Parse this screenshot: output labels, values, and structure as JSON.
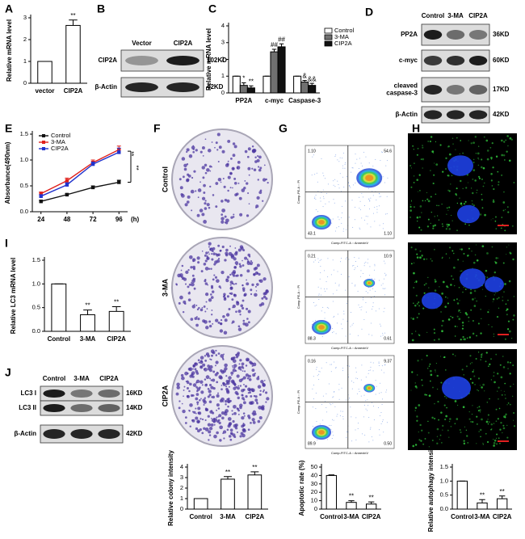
{
  "chart_data": [
    {
      "type": "bar",
      "panel": "A",
      "ylabel": "Relative mRNA level",
      "categories": [
        "vector",
        "CIP2A"
      ],
      "values": [
        1,
        2.65
      ],
      "errors": [
        0,
        0.25
      ],
      "annotations": [
        null,
        "**"
      ],
      "color": "#ffffff",
      "ylim": [
        0,
        3
      ],
      "yticks": [
        0,
        1,
        2,
        3
      ]
    },
    {
      "type": "bar",
      "panel": "C",
      "ylabel": "Relative mRNA level",
      "categories": [
        "PP2A",
        "c-myc",
        "Caspase-3"
      ],
      "series": [
        {
          "name": "Control",
          "color": "#ffffff",
          "values": [
            1,
            1,
            1
          ],
          "errors": [
            0,
            0,
            0
          ],
          "annotations": [
            null,
            null,
            null
          ]
        },
        {
          "name": "3-MA",
          "color": "#707070",
          "values": [
            0.45,
            2.45,
            0.65
          ],
          "errors": [
            0.15,
            0.15,
            0.1
          ],
          "annotations": [
            "*",
            "##",
            "&"
          ]
        },
        {
          "name": "CIP2A",
          "color": "#111111",
          "values": [
            0.3,
            2.75,
            0.45
          ],
          "errors": [
            0.12,
            0.18,
            0.12
          ],
          "annotations": [
            "**",
            "##",
            "&&"
          ]
        }
      ],
      "ylim": [
        0,
        4
      ],
      "yticks": [
        0,
        1,
        2,
        3,
        4
      ]
    },
    {
      "type": "line",
      "panel": "E",
      "ylabel": "Absorbance(490nm)",
      "xlabel": "(h)",
      "x": [
        24,
        48,
        72,
        96
      ],
      "xlim": [
        16,
        104
      ],
      "xticks": [
        24,
        48,
        72,
        96
      ],
      "series": [
        {
          "name": "Control",
          "color": "#111111",
          "values": [
            0.2,
            0.33,
            0.47,
            0.57
          ],
          "errors": [
            0.02,
            0.02,
            0.03,
            0.04
          ]
        },
        {
          "name": "3-MA",
          "color": "#e0201b",
          "values": [
            0.35,
            0.6,
            0.95,
            1.2
          ],
          "errors": [
            0.03,
            0.05,
            0.05,
            0.07
          ]
        },
        {
          "name": "CIP2A",
          "color": "#2233cc",
          "values": [
            0.3,
            0.52,
            0.92,
            1.15
          ],
          "errors": [
            0.03,
            0.04,
            0.04,
            0.08
          ]
        }
      ],
      "annotations": [
        "**",
        "**"
      ],
      "ylim": [
        0,
        1.5
      ],
      "yticks": [
        {
          "value": 0,
          "label": "0.0"
        },
        0.5,
        {
          "value": 1,
          "label": "1.0"
        },
        1.5
      ]
    },
    {
      "type": "bar",
      "panel": "I",
      "ylabel": "Relative LC3 mRNA level",
      "categories": [
        "Control",
        "3-MA",
        "CIP2A"
      ],
      "values": [
        1,
        0.35,
        0.42
      ],
      "errors": [
        0,
        0.1,
        0.1
      ],
      "annotations": [
        null,
        "**",
        "**"
      ],
      "color": "#ffffff",
      "ylim": [
        0,
        1.5
      ],
      "yticks": [
        {
          "value": 0,
          "label": "0.0"
        },
        0.5,
        {
          "value": 1,
          "label": "1.0"
        },
        1.5
      ]
    },
    {
      "type": "bar",
      "ylabel": "Relative colony intensity",
      "categories": [
        "Control",
        "3-MA",
        "CIP2A"
      ],
      "values": [
        1,
        2.85,
        3.25
      ],
      "errors": [
        0,
        0.25,
        0.3
      ],
      "annotations": [
        null,
        "**",
        "**"
      ],
      "color": "#ffffff",
      "ylim": [
        0,
        4
      ],
      "yticks": [
        0,
        1,
        2,
        3,
        4
      ]
    },
    {
      "type": "bar",
      "ylabel": "Apoptotic rate (%)",
      "categories": [
        "Control",
        "3-MA",
        "CIP2A"
      ],
      "values": [
        40,
        8,
        6
      ],
      "errors": [
        0.8,
        2,
        2.5
      ],
      "annotations": [
        null,
        "**",
        "**"
      ],
      "color": "#ffffff",
      "ylim": [
        0,
        50
      ],
      "yticks": [
        0,
        10,
        20,
        30,
        40,
        50
      ]
    },
    {
      "type": "bar",
      "ylabel": "Relative autophagy intensity",
      "categories": [
        "Control",
        "3-MA",
        "CIP2A"
      ],
      "values": [
        1,
        0.22,
        0.37
      ],
      "errors": [
        0,
        0.12,
        0.1
      ],
      "annotations": [
        null,
        "**",
        "**"
      ],
      "color": "#ffffff",
      "ylim": [
        0,
        1.5
      ],
      "yticks": [
        {
          "value": 0,
          "label": "0.0"
        },
        0.5,
        {
          "value": 1,
          "label": "1.0"
        },
        1.5
      ]
    }
  ],
  "blots": [
    {
      "panel": "B",
      "lanes": [
        "Vector",
        "CIP2A"
      ],
      "rows": [
        {
          "label": [
            "CIP2A"
          ],
          "size": "102KD"
        },
        {
          "label": [
            "β-Actin"
          ],
          "size": "42KD"
        }
      ]
    },
    {
      "panel": "D",
      "lanes": [
        "Control",
        "3-MA",
        "CIP2A"
      ],
      "rows": [
        {
          "label": [
            "PP2A"
          ],
          "size": "36KD"
        },
        {
          "label": [
            "c-myc"
          ],
          "size": "60KD"
        },
        {
          "label": [
            "cleaved",
            "caspase-3"
          ],
          "size": "17KD"
        },
        {
          "label": [
            "β-Actin"
          ],
          "size": "42KD"
        }
      ]
    },
    {
      "panel": "J",
      "lanes": [
        "Control",
        "3-MA",
        "CIP2A"
      ],
      "rows": [
        {
          "label": [
            "LC3 I"
          ],
          "size": "16KD"
        },
        {
          "label": [
            "LC3 II"
          ],
          "size": "14KD"
        },
        {
          "label": [
            "β-Actin"
          ],
          "size": "42KD"
        }
      ]
    }
  ],
  "colony": {
    "panel": "F",
    "rows": [
      "Control",
      "3-MA",
      "CIP2A"
    ]
  },
  "flow": {
    "panel": "G",
    "y_axis": "Comp-PE-A :: PI",
    "x_axis": "Comp-FITC-A :: AnnexinV",
    "plots": [
      [
        "1.10",
        "54.6",
        "43.1",
        "1.10"
      ],
      [
        "0.21",
        "10.9",
        "88.3",
        "0.61"
      ],
      [
        "0.16",
        "9.37",
        "89.9",
        "0.50"
      ]
    ]
  },
  "fluorescence": {
    "panel": "H"
  }
}
